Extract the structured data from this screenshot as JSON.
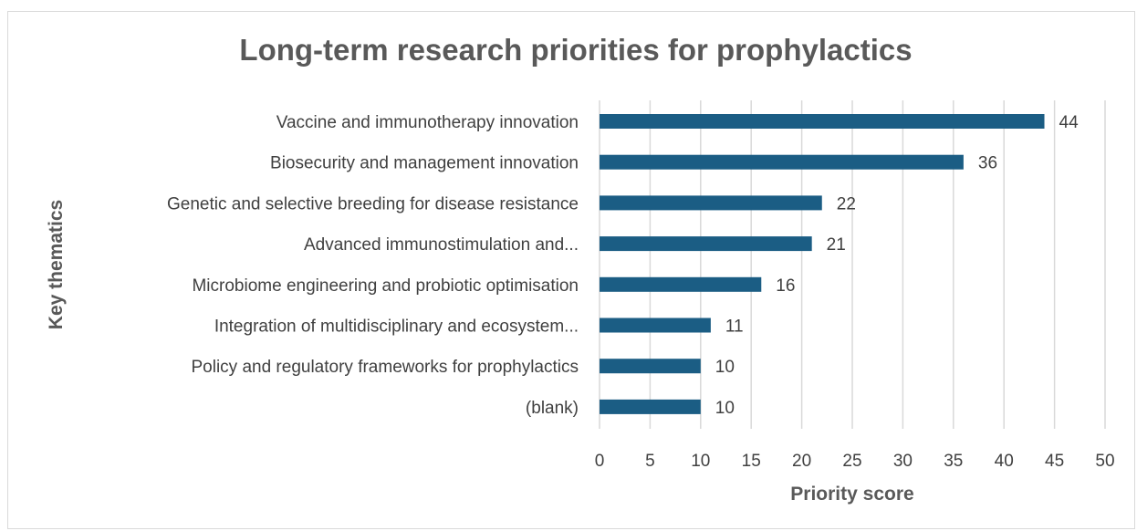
{
  "chart_data": {
    "type": "bar",
    "orientation": "horizontal",
    "title": "Long-term research priorities for prophylactics",
    "xlabel": "Priority score",
    "ylabel": "Key thematics",
    "categories": [
      "Vaccine and immunotherapy innovation",
      "Biosecurity and management innovation",
      "Genetic and selective breeding for disease resistance",
      "Advanced immunostimulation and...",
      "Microbiome engineering and probiotic optimisation",
      "Integration of multidisciplinary and ecosystem...",
      "Policy and regulatory frameworks for prophylactics",
      "(blank)"
    ],
    "values": [
      44,
      36,
      22,
      21,
      16,
      11,
      10,
      10
    ],
    "xlim": [
      0,
      50
    ],
    "xticks": [
      0,
      5,
      10,
      15,
      20,
      25,
      30,
      35,
      40,
      45,
      50
    ],
    "grid": "vertical",
    "legend": "none",
    "bar_color": "#1b5d84"
  }
}
